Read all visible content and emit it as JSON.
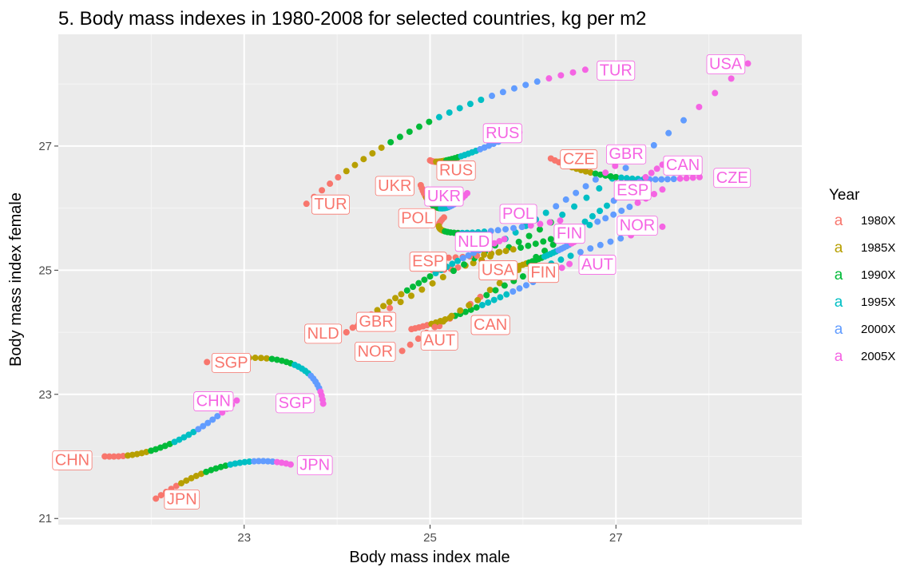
{
  "chart_data": {
    "type": "scatter",
    "title": "5. Body mass indexes  in 1980-2008 for selected countries, kg per m2",
    "xlabel": "Body mass index male",
    "ylabel": "Body mass index female",
    "xlim": [
      21.0,
      29.0
    ],
    "ylim": [
      20.9,
      28.8
    ],
    "x_ticks": [
      23,
      25,
      27
    ],
    "y_ticks": [
      21,
      23,
      25,
      27
    ],
    "grid": true,
    "legend": {
      "title": "Year",
      "position": "right",
      "glyph": "a",
      "entries": [
        {
          "label": "1980X",
          "color": "#F8766D"
        },
        {
          "label": "1985X",
          "color": "#B79F00"
        },
        {
          "label": "1990X",
          "color": "#00BA38"
        },
        {
          "label": "1995X",
          "color": "#00BFC4"
        },
        {
          "label": "2000X",
          "color": "#619CFF"
        },
        {
          "label": "2005X",
          "color": "#F564E3"
        }
      ]
    },
    "series": [
      {
        "name": "TUR",
        "start": [
          23.67,
          26.07
        ],
        "mid": [
          24.99,
          27.39
        ],
        "end": [
          26.67,
          28.23
        ],
        "bend": 0.75
      },
      {
        "name": "USA",
        "start": [
          25.02,
          25.01
        ],
        "mid": [
          26.3,
          25.77
        ],
        "end": [
          28.42,
          28.33
        ],
        "bend": 0.8
      },
      {
        "name": "RUS",
        "start": [
          25.0,
          26.77
        ],
        "mid": [
          25.3,
          26.82
        ],
        "end": [
          25.96,
          27.22
        ],
        "bend": 0.4
      },
      {
        "name": "UKR",
        "start": [
          24.9,
          26.37
        ],
        "mid": [
          25.1,
          26.0
        ],
        "end": [
          25.4,
          26.24
        ],
        "bend": 0.4
      },
      {
        "name": "CZE",
        "start": [
          26.3,
          26.8
        ],
        "mid": [
          27.0,
          26.5
        ],
        "end": [
          27.9,
          26.5
        ],
        "bend": 0.4
      },
      {
        "name": "GBR",
        "start": [
          24.1,
          24.0
        ],
        "mid": [
          25.7,
          25.4
        ],
        "end": [
          27.2,
          26.9
        ],
        "bend": 0.1
      },
      {
        "name": "CAN",
        "start": [
          25.1,
          24.1
        ],
        "mid": [
          26.5,
          25.6
        ],
        "end": [
          27.5,
          26.7
        ],
        "bend": 0.2
      },
      {
        "name": "ESP",
        "start": [
          25.2,
          25.2
        ],
        "mid": [
          26.3,
          25.5
        ],
        "end": [
          27.5,
          26.3
        ],
        "bend": 0.3
      },
      {
        "name": "POL",
        "start": [
          25.15,
          25.85
        ],
        "mid": [
          25.3,
          25.6
        ],
        "end": [
          26.4,
          25.8
        ],
        "bend": 0.6
      },
      {
        "name": "NLD",
        "start": [
          24.1,
          24.0
        ],
        "mid": [
          25.0,
          24.9
        ],
        "end": [
          25.8,
          25.5
        ],
        "bend": 0.2
      },
      {
        "name": "FIN",
        "start": [
          25.7,
          24.95
        ],
        "mid": [
          26.2,
          25.2
        ],
        "end": [
          26.6,
          25.5
        ],
        "bend": 0.3
      },
      {
        "name": "AUT",
        "start": [
          24.8,
          24.05
        ],
        "mid": [
          25.5,
          24.4
        ],
        "end": [
          26.5,
          25.1
        ],
        "bend": 0.3
      },
      {
        "name": "NOR",
        "start": [
          24.7,
          23.7
        ],
        "mid": [
          26.0,
          24.9
        ],
        "end": [
          27.5,
          25.7
        ],
        "bend": 0.2
      },
      {
        "name": "SGP",
        "start": [
          22.6,
          23.52
        ],
        "mid": [
          23.5,
          23.5
        ],
        "end": [
          23.85,
          22.85
        ],
        "bend": 0.6
      },
      {
        "name": "CHN",
        "start": [
          21.5,
          22.0
        ],
        "mid": [
          22.2,
          22.2
        ],
        "end": [
          22.92,
          22.9
        ],
        "bend": 0.3
      },
      {
        "name": "JPN",
        "start": [
          22.05,
          21.32
        ],
        "mid": [
          22.8,
          21.85
        ],
        "end": [
          23.5,
          21.87
        ],
        "bend": 0.6
      }
    ],
    "labels": [
      {
        "text": "TUR",
        "x": 23.93,
        "y": 26.07,
        "color": "#F8766D"
      },
      {
        "text": "TUR",
        "x": 27.0,
        "y": 28.23,
        "color": "#F564E3"
      },
      {
        "text": "USA",
        "x": 28.18,
        "y": 28.33,
        "color": "#F564E3"
      },
      {
        "text": "USA",
        "x": 25.73,
        "y": 25.01,
        "color": "#F8766D"
      },
      {
        "text": "RUS",
        "x": 25.78,
        "y": 27.22,
        "color": "#F564E3"
      },
      {
        "text": "RUS",
        "x": 25.28,
        "y": 26.62,
        "color": "#F8766D"
      },
      {
        "text": "UKR",
        "x": 24.62,
        "y": 26.37,
        "color": "#F8766D"
      },
      {
        "text": "UKR",
        "x": 25.15,
        "y": 26.2,
        "color": "#F564E3"
      },
      {
        "text": "CZE",
        "x": 26.6,
        "y": 26.8,
        "color": "#F8766D"
      },
      {
        "text": "CZE",
        "x": 28.25,
        "y": 26.5,
        "color": "#F564E3"
      },
      {
        "text": "GBR",
        "x": 27.11,
        "y": 26.88,
        "color": "#F564E3"
      },
      {
        "text": "GBR",
        "x": 24.42,
        "y": 24.18,
        "color": "#F8766D"
      },
      {
        "text": "CAN",
        "x": 27.72,
        "y": 26.7,
        "color": "#F564E3"
      },
      {
        "text": "CAN",
        "x": 25.65,
        "y": 24.13,
        "color": "#F8766D"
      },
      {
        "text": "ESP",
        "x": 27.18,
        "y": 26.3,
        "color": "#F564E3"
      },
      {
        "text": "ESP",
        "x": 24.98,
        "y": 25.15,
        "color": "#F8766D"
      },
      {
        "text": "POL",
        "x": 24.86,
        "y": 25.85,
        "color": "#F8766D"
      },
      {
        "text": "POL",
        "x": 25.95,
        "y": 25.92,
        "color": "#F564E3"
      },
      {
        "text": "NLD",
        "x": 25.47,
        "y": 25.47,
        "color": "#F564E3"
      },
      {
        "text": "NLD",
        "x": 23.85,
        "y": 23.99,
        "color": "#F8766D"
      },
      {
        "text": "FIN",
        "x": 26.5,
        "y": 25.6,
        "color": "#F564E3"
      },
      {
        "text": "FIN",
        "x": 26.22,
        "y": 24.97,
        "color": "#F8766D"
      },
      {
        "text": "AUT",
        "x": 26.8,
        "y": 25.1,
        "color": "#F564E3"
      },
      {
        "text": "AUT",
        "x": 25.1,
        "y": 23.88,
        "color": "#F8766D"
      },
      {
        "text": "NOR",
        "x": 27.23,
        "y": 25.73,
        "color": "#F564E3"
      },
      {
        "text": "NOR",
        "x": 24.41,
        "y": 23.7,
        "color": "#F8766D"
      },
      {
        "text": "SGP",
        "x": 22.86,
        "y": 23.52,
        "color": "#F8766D"
      },
      {
        "text": "SGP",
        "x": 23.55,
        "y": 22.87,
        "color": "#F564E3"
      },
      {
        "text": "CHN",
        "x": 22.67,
        "y": 22.9,
        "color": "#F564E3"
      },
      {
        "text": "CHN",
        "x": 21.15,
        "y": 21.95,
        "color": "#F8766D"
      },
      {
        "text": "JPN",
        "x": 23.76,
        "y": 21.87,
        "color": "#F564E3"
      },
      {
        "text": "JPN",
        "x": 22.33,
        "y": 21.32,
        "color": "#F8766D"
      }
    ]
  }
}
